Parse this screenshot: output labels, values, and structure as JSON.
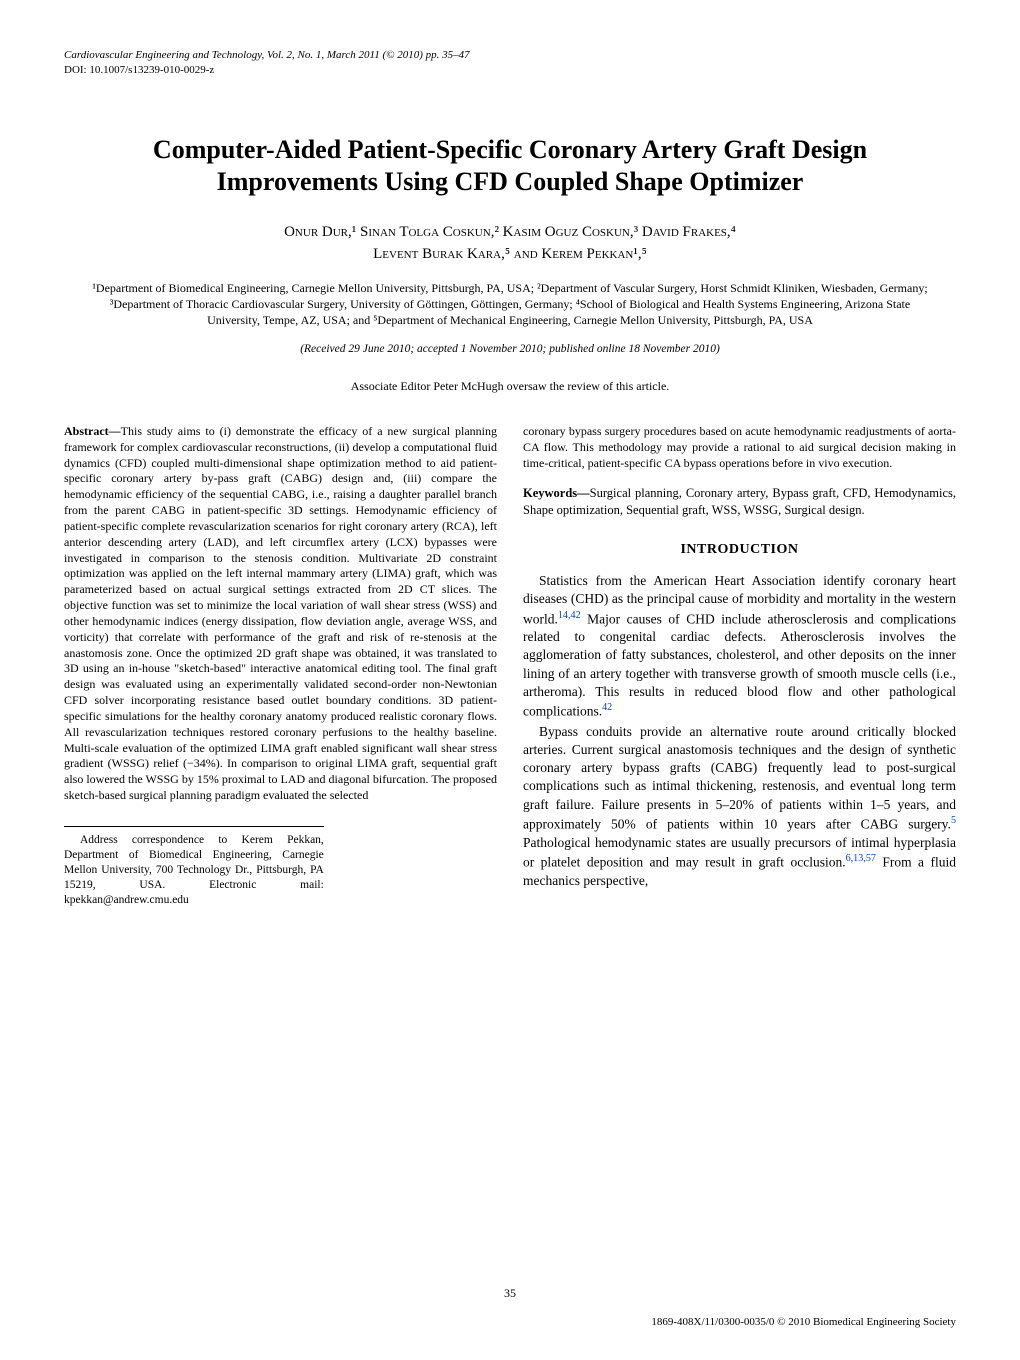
{
  "journal_header": "Cardiovascular Engineering and Technology, Vol. 2, No. 1, March 2011 (© 2010) pp. 35–47",
  "doi_line": "DOI: 10.1007/s13239-010-0029-z",
  "title_line1": "Computer-Aided Patient-Specific Coronary Artery Graft Design",
  "title_line2": "Improvements Using CFD Coupled Shape Optimizer",
  "authors_line1": "Onur Dur,¹ Sinan Tolga Coskun,² Kasim Oguz Coskun,³ David Frakes,⁴",
  "authors_line2": "Levent Burak Kara,⁵ and Kerem Pekkan¹,⁵",
  "affiliations": "¹Department of Biomedical Engineering, Carnegie Mellon University, Pittsburgh, PA, USA; ²Department of Vascular Surgery, Horst Schmidt Kliniken, Wiesbaden, Germany; ³Department of Thoracic Cardiovascular Surgery, University of Göttingen, Göttingen, Germany; ⁴School of Biological and Health Systems Engineering, Arizona State University, Tempe, AZ, USA; and ⁵Department of Mechanical Engineering, Carnegie Mellon University, Pittsburgh, PA, USA",
  "received": "(Received 29 June 2010; accepted 1 November 2010; published online 18 November 2010)",
  "assoc_editor": "Associate Editor Peter McHugh oversaw the review of this article.",
  "abstract_label": "Abstract—",
  "abstract_text": "This study aims to (i) demonstrate the efficacy of a new surgical planning framework for complex cardiovascular reconstructions, (ii) develop a computational fluid dynamics (CFD) coupled multi-dimensional shape optimization method to aid patient-specific coronary artery by-pass graft (CABG) design and, (iii) compare the hemodynamic efficiency of the sequential CABG, i.e., raising a daughter parallel branch from the parent CABG in patient-specific 3D settings. Hemodynamic efficiency of patient-specific complete revascularization scenarios for right coronary artery (RCA), left anterior descending artery (LAD), and left circumflex artery (LCX) bypasses were investigated in comparison to the stenosis condition. Multivariate 2D constraint optimization was applied on the left internal mammary artery (LIMA) graft, which was parameterized based on actual surgical settings extracted from 2D CT slices. The objective function was set to minimize the local variation of wall shear stress (WSS) and other hemodynamic indices (energy dissipation, flow deviation angle, average WSS, and vorticity) that correlate with performance of the graft and risk of re-stenosis at the anastomosis zone. Once the optimized 2D graft shape was obtained, it was translated to 3D using an in-house \"sketch-based\" interactive anatomical editing tool. The final graft design was evaluated using an experimentally validated second-order non-Newtonian CFD solver incorporating resistance based outlet boundary conditions. 3D patient-specific simulations for the healthy coronary anatomy produced realistic coronary flows. All revascularization techniques restored coronary perfusions to the healthy baseline. Multi-scale evaluation of the optimized LIMA graft enabled significant wall shear stress gradient (WSSG) relief (−34%). In comparison to original LIMA graft, sequential graft also lowered the WSSG by 15% proximal to LAD and diagonal bifurcation. The proposed sketch-based surgical planning paradigm evaluated the selected",
  "abstract_cont": "coronary bypass surgery procedures based on acute hemodynamic readjustments of aorta-CA flow. This methodology may provide a rational to aid surgical decision making in time-critical, patient-specific CA bypass operations before in vivo execution.",
  "keywords_label": "Keywords—",
  "keywords_text": "Surgical planning, Coronary artery, Bypass graft, CFD, Hemodynamics, Shape optimization, Sequential graft, WSS, WSSG, Surgical design.",
  "intro_heading": "INTRODUCTION",
  "intro_p1_a": "Statistics from the American Heart Association identify coronary heart diseases (CHD) as the principal cause of morbidity and mortality in the western world.",
  "intro_p1_ref1": "14,42",
  "intro_p1_b": " Major causes of CHD include atherosclerosis and complications related to congenital cardiac defects. Atherosclerosis involves the agglomeration of fatty substances, cholesterol, and other deposits on the inner lining of an artery together with transverse growth of smooth muscle cells (i.e., artheroma). This results in reduced blood flow and other pathological complications.",
  "intro_p1_ref2": "42",
  "intro_p2_a": "Bypass conduits provide an alternative route around critically blocked arteries. Current surgical anastomosis techniques and the design of synthetic coronary artery bypass grafts (CABG) frequently lead to post-surgical complications such as intimal thickening, restenosis, and eventual long term graft failure. Failure presents in 5–20% of patients within 1–5 years, and approximately 50% of patients within 10 years after CABG surgery.",
  "intro_p2_ref1": "5",
  "intro_p2_b": " Pathological hemodynamic states are usually precursors of intimal hyperplasia or platelet deposition and may result in graft occlusion.",
  "intro_p2_ref2": "6,13,57",
  "intro_p2_c": " From a fluid mechanics perspective,",
  "correspondence": "Address correspondence to Kerem Pekkan, Department of Biomedical Engineering, Carnegie Mellon University, 700 Technology Dr., Pittsburgh, PA 15219, USA. Electronic mail: kpekkan@andrew.cmu.edu",
  "page_num": "35",
  "copyright": "1869-408X/11/0300-0035/0 © 2010 Biomedical Engineering Society"
}
